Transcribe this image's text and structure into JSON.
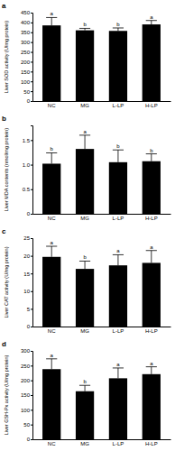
{
  "chart_data": [
    {
      "type": "bar",
      "title": "a",
      "y_label": "Liver SOD activity (U/mg protein)",
      "categories": [
        "NC",
        "MG",
        "L-LP",
        "H-LP"
      ],
      "values": [
        385,
        360,
        357,
        390
      ],
      "errors": [
        40,
        10,
        15,
        20
      ],
      "annotations": [
        "a",
        "b",
        "b",
        "a"
      ],
      "color": "#000000",
      "ylim": [
        0,
        450
      ],
      "yticks": [
        0,
        50,
        100,
        150,
        200,
        250,
        300,
        350,
        400,
        450
      ]
    },
    {
      "type": "bar",
      "title": "b",
      "y_label": "Liver MDA contents (nmol/mg protein)",
      "categories": [
        "NC",
        "MG",
        "L-LP",
        "H-LP"
      ],
      "values": [
        1.02,
        1.32,
        1.05,
        1.07
      ],
      "errors": [
        0.22,
        0.28,
        0.25,
        0.15
      ],
      "annotations": [
        "b",
        "a",
        "b",
        "b"
      ],
      "color": "#000000",
      "ylim": [
        0,
        1.8
      ],
      "yticks": [
        0,
        0.5,
        {
          "value": 1,
          "label": "1.0"
        },
        1.5
      ]
    },
    {
      "type": "bar",
      "title": "c",
      "y_label": "Liver CAT activity (U/mg protein)",
      "categories": [
        "NC",
        "MG",
        "L-LP",
        "H-LP"
      ],
      "values": [
        19.7,
        16.3,
        17.3,
        18.0
      ],
      "errors": [
        3.0,
        2.2,
        3.0,
        3.5
      ],
      "annotations": [
        "a",
        "b",
        "a",
        "a"
      ],
      "color": "#000000",
      "ylim": [
        0,
        25
      ],
      "yticks": [
        0,
        5,
        10,
        15,
        20,
        25
      ]
    },
    {
      "type": "bar",
      "title": "d",
      "y_label": "Liver GSH-Px activity (U/mg protein)",
      "categories": [
        "NC",
        "MG",
        "L-LP",
        "H-LP"
      ],
      "values": [
        238,
        163,
        207,
        221
      ],
      "errors": [
        35,
        20,
        35,
        25
      ],
      "annotations": [
        "a",
        "b",
        "a",
        "a"
      ],
      "color": "#000000",
      "ylim": [
        0,
        300
      ],
      "yticks": [
        0,
        50,
        100,
        150,
        200,
        250,
        300
      ]
    }
  ]
}
